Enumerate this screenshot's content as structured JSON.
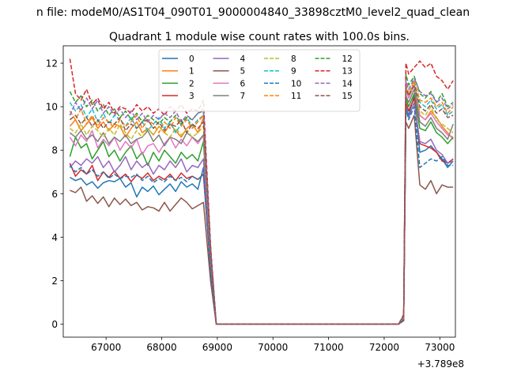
{
  "chart_data": {
    "type": "line",
    "suptitle": "n file: modeM0/AS1T04_090T01_9000004840_33898cztM0_level2_quad_clean",
    "title": "Quadrant 1 module wise count rates with 100.0s bins.",
    "xlabel": "",
    "ylabel": "",
    "x_offset_label": "+3.789e8",
    "xlim": [
      66230,
      73280
    ],
    "ylim": [
      -0.6,
      12.8
    ],
    "xticks": [
      67000,
      68000,
      69000,
      70000,
      71000,
      72000,
      73000
    ],
    "xtick_labels": [
      "67000",
      "68000",
      "69000",
      "70000",
      "71000",
      "72000",
      "73000"
    ],
    "yticks": [
      0,
      2,
      4,
      6,
      8,
      10,
      12
    ],
    "ytick_labels": [
      "0",
      "2",
      "4",
      "6",
      "8",
      "10",
      "12"
    ],
    "legend_position": "top-center",
    "segments": {
      "seg1": {
        "x_start": 66350,
        "x_step": 100,
        "count": 25
      },
      "drop_x": [
        68880,
        68980
      ],
      "flat_x": [
        69020,
        72260
      ],
      "seg2_start": 72350,
      "seg2_x": [
        72350,
        72390,
        72440,
        72540,
        72640,
        72740,
        72840,
        72940,
        73040,
        73140,
        73240
      ]
    },
    "series": [
      {
        "name": "0",
        "color": "#1f77b4",
        "dash": false,
        "seg1": [
          6.75,
          6.6,
          6.7,
          6.4,
          6.55,
          6.25,
          6.5,
          6.6,
          6.55,
          6.7,
          6.3,
          6.5,
          5.85,
          6.3,
          6.1,
          6.35,
          5.95,
          6.2,
          6.45,
          6.1,
          6.55,
          6.3,
          6.45,
          6.2,
          7.2
        ],
        "seg2": [
          0.2,
          10.0,
          9.6,
          10.5,
          7.9,
          8.0,
          8.2,
          7.9,
          7.6,
          7.2,
          7.5
        ]
      },
      {
        "name": "1",
        "color": "#ff7f0e",
        "dash": false,
        "seg1": [
          9.1,
          9.4,
          8.9,
          9.2,
          9.5,
          9.0,
          9.3,
          8.9,
          9.2,
          9.1,
          8.6,
          9.0,
          9.3,
          8.8,
          9.0,
          8.7,
          9.1,
          8.8,
          9.2,
          8.9,
          8.6,
          9.0,
          9.2,
          8.8,
          9.5
        ],
        "seg2": [
          0.3,
          10.8,
          10.4,
          11.0,
          9.6,
          9.4,
          9.8,
          9.5,
          9.1,
          8.8,
          8.5
        ]
      },
      {
        "name": "2",
        "color": "#2ca02c",
        "dash": false,
        "seg1": [
          7.7,
          8.6,
          8.1,
          8.3,
          7.6,
          8.0,
          8.4,
          7.7,
          8.0,
          7.5,
          7.9,
          8.2,
          7.6,
          7.9,
          7.3,
          7.9,
          7.5,
          8.0,
          7.7,
          7.4,
          7.9,
          7.6,
          7.8,
          7.5,
          8.4
        ],
        "seg2": [
          0.25,
          10.4,
          10.0,
          10.6,
          9.0,
          8.9,
          9.3,
          8.8,
          8.6,
          8.3,
          8.6
        ]
      },
      {
        "name": "3",
        "color": "#d62728",
        "dash": false,
        "seg1": [
          7.4,
          6.8,
          7.1,
          6.9,
          7.3,
          6.6,
          7.0,
          6.75,
          7.05,
          6.7,
          6.9,
          6.55,
          6.85,
          6.7,
          6.95,
          6.6,
          6.8,
          6.65,
          6.9,
          6.6,
          6.95,
          6.7,
          6.8,
          6.65,
          6.9
        ],
        "seg2": [
          0.2,
          10.2,
          9.8,
          10.4,
          8.3,
          8.2,
          8.1,
          7.9,
          7.5,
          7.4,
          7.6
        ]
      },
      {
        "name": "4",
        "color": "#9467bd",
        "dash": false,
        "seg1": [
          7.2,
          7.5,
          7.3,
          7.6,
          7.4,
          7.7,
          7.2,
          7.5,
          7.0,
          7.3,
          7.7,
          7.1,
          7.5,
          7.2,
          7.4,
          6.9,
          7.3,
          7.1,
          7.5,
          7.2,
          7.6,
          7.0,
          7.3,
          7.2,
          7.6
        ],
        "seg2": [
          0.2,
          9.9,
          9.5,
          10.2,
          8.4,
          8.3,
          8.5,
          8.0,
          7.8,
          7.4,
          7.5
        ]
      },
      {
        "name": "5",
        "color": "#8c564b",
        "dash": false,
        "seg1": [
          6.15,
          6.05,
          6.3,
          5.65,
          5.9,
          5.55,
          5.85,
          5.4,
          5.8,
          5.5,
          5.75,
          5.45,
          5.6,
          5.25,
          5.4,
          5.35,
          5.2,
          5.6,
          5.2,
          5.5,
          5.8,
          5.6,
          5.3,
          5.45,
          5.6
        ],
        "seg2": [
          0.15,
          9.3,
          9.0,
          9.6,
          6.4,
          6.2,
          6.6,
          6.0,
          6.4,
          6.3,
          6.3
        ]
      },
      {
        "name": "6",
        "color": "#e377c2",
        "dash": false,
        "seg1": [
          8.6,
          8.2,
          8.7,
          8.4,
          8.9,
          8.1,
          8.5,
          8.2,
          8.6,
          8.0,
          8.4,
          8.1,
          8.5,
          7.8,
          8.2,
          8.3,
          7.9,
          8.3,
          8.6,
          8.1,
          8.5,
          8.2,
          8.6,
          8.3,
          8.7
        ],
        "seg2": [
          0.3,
          10.8,
          10.4,
          11.0,
          9.6,
          9.4,
          9.7,
          9.3,
          9.0,
          8.7,
          8.6
        ]
      },
      {
        "name": "7",
        "color": "#7f7f7f",
        "dash": false,
        "seg1": [
          8.8,
          8.6,
          8.9,
          8.5,
          8.7,
          8.4,
          8.8,
          8.3,
          8.6,
          8.4,
          8.7,
          8.3,
          8.5,
          8.6,
          8.9,
          8.4,
          8.7,
          8.2,
          8.6,
          8.5,
          8.3,
          8.8,
          8.6,
          8.4,
          8.7
        ],
        "seg2": [
          0.3,
          10.5,
          10.2,
          10.8,
          9.3,
          9.1,
          9.5,
          9.0,
          8.8,
          8.5,
          9.2
        ]
      },
      {
        "name": "8",
        "color": "#bcbd22",
        "dash": true,
        "seg1": [
          9.0,
          8.8,
          9.2,
          8.7,
          9.1,
          8.9,
          8.6,
          9.0,
          8.7,
          9.2,
          8.8,
          8.5,
          8.9,
          8.6,
          9.0,
          8.7,
          9.1,
          8.8,
          8.6,
          9.0,
          8.7,
          8.9,
          8.6,
          8.8,
          9.1
        ],
        "seg2": [
          0.3,
          10.9,
          10.5,
          11.1,
          9.8,
          9.6,
          10.0,
          9.4,
          9.2,
          9.0,
          8.8
        ]
      },
      {
        "name": "9",
        "color": "#17becf",
        "dash": true,
        "seg1": [
          10.2,
          9.8,
          10.1,
          9.5,
          9.9,
          9.3,
          9.7,
          9.2,
          9.6,
          9.4,
          9.1,
          9.5,
          9.0,
          9.3,
          8.9,
          9.2,
          9.5,
          9.0,
          9.3,
          8.8,
          9.2,
          9.5,
          9.1,
          9.4,
          9.6
        ],
        "seg2": [
          0.35,
          11.0,
          10.6,
          11.2,
          10.2,
          10.0,
          10.3,
          9.9,
          10.1,
          9.6,
          9.8
        ]
      },
      {
        "name": "10",
        "color": "#1f77b4",
        "dash": true,
        "seg1": [
          7.3,
          7.0,
          7.2,
          6.9,
          7.1,
          6.8,
          7.0,
          6.7,
          6.9,
          6.7,
          6.8,
          6.75,
          6.9,
          6.6,
          6.8,
          6.5,
          6.7,
          6.55,
          6.8,
          6.6,
          6.75,
          6.55,
          6.8,
          6.65,
          6.9
        ],
        "seg2": [
          0.2,
          9.9,
          9.4,
          10.0,
          7.2,
          7.4,
          7.6,
          7.5,
          7.7,
          7.3,
          7.3
        ]
      },
      {
        "name": "11",
        "color": "#ff7f0e",
        "dash": true,
        "seg1": [
          9.8,
          9.4,
          9.9,
          9.2,
          9.6,
          9.1,
          9.5,
          9.3,
          9.0,
          9.4,
          9.1,
          9.3,
          9.6,
          9.0,
          9.4,
          9.2,
          8.8,
          9.3,
          9.0,
          9.5,
          9.1,
          9.4,
          9.0,
          9.3,
          9.6
        ],
        "seg2": [
          0.35,
          11.0,
          10.6,
          11.2,
          10.3,
          10.2,
          10.4,
          10.0,
          10.2,
          9.7,
          10.0
        ]
      },
      {
        "name": "12",
        "color": "#2ca02c",
        "dash": true,
        "seg1": [
          10.7,
          10.2,
          10.5,
          10.0,
          10.3,
          9.8,
          10.1,
          9.6,
          9.9,
          9.5,
          9.8,
          9.4,
          9.7,
          9.3,
          9.6,
          9.4,
          9.2,
          9.5,
          9.3,
          9.6,
          9.2,
          9.5,
          9.4,
          9.7,
          9.8
        ],
        "seg2": [
          0.4,
          11.5,
          11.0,
          11.4,
          10.6,
          10.4,
          10.7,
          10.2,
          10.6,
          10.0,
          10.2
        ]
      },
      {
        "name": "13",
        "color": "#d62728",
        "dash": true,
        "seg1": [
          12.2,
          10.6,
          10.3,
          10.8,
          10.1,
          10.4,
          9.9,
          10.2,
          9.7,
          10.0,
          9.9,
          9.7,
          10.1,
          9.8,
          10.0,
          9.7,
          9.9,
          9.6,
          10.0,
          9.8,
          10.1,
          9.7,
          9.9,
          9.8,
          10.3
        ],
        "seg2": [
          0.45,
          12.0,
          11.5,
          11.8,
          12.1,
          11.8,
          12.0,
          11.4,
          11.2,
          10.8,
          11.2
        ]
      },
      {
        "name": "14",
        "color": "#9467bd",
        "dash": true,
        "seg1": [
          9.6,
          10.2,
          9.8,
          10.4,
          9.9,
          10.3,
          9.7,
          10.0,
          9.6,
          9.9,
          9.5,
          9.8,
          9.4,
          9.7,
          9.3,
          9.6,
          9.4,
          9.7,
          9.5,
          9.8,
          9.3,
          9.6,
          9.4,
          9.7,
          9.9
        ],
        "seg2": [
          0.4,
          11.2,
          10.8,
          11.3,
          10.7,
          10.5,
          10.6,
          10.2,
          10.4,
          9.9,
          10.1
        ]
      },
      {
        "name": "15",
        "color": "#8c564b",
        "dash": true,
        "seg1": [
          9.4,
          9.6,
          9.2,
          9.5,
          9.1,
          9.4,
          9.0,
          9.3,
          9.2,
          9.5,
          8.9,
          9.2,
          9.0,
          9.3,
          9.4,
          9.0,
          9.3,
          8.9,
          9.2,
          9.1,
          9.4,
          8.8,
          9.2,
          9.0,
          9.3
        ],
        "seg2": [
          0.35,
          10.9,
          10.5,
          11.0,
          10.0,
          9.8,
          10.1,
          9.7,
          9.9,
          9.5,
          9.6
        ]
      }
    ]
  }
}
